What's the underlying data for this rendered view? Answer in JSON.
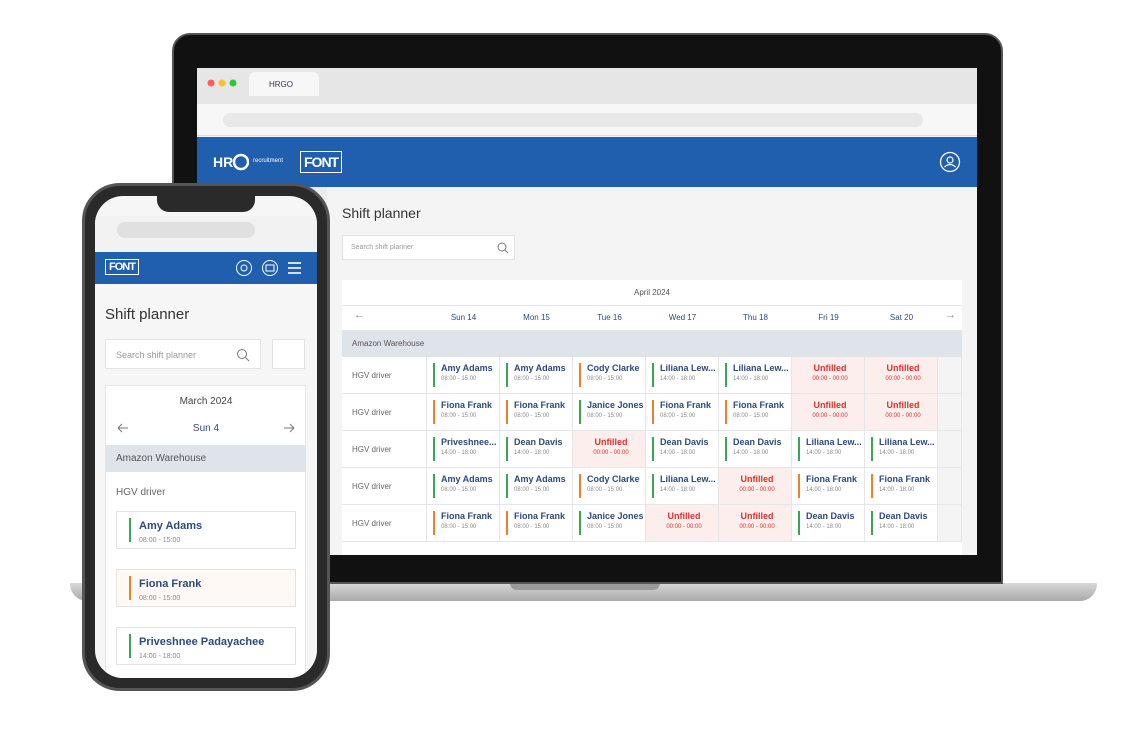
{
  "laptop": {
    "browser": {
      "tab_title": "HRGO"
    },
    "header": {
      "brand": "recruitment",
      "logo": "FONT"
    },
    "page_title": "Shift planner",
    "search_placeholder": "Search shift planner",
    "month": "April 2024",
    "days": [
      "Sun 14",
      "Mon 15",
      "Tue 16",
      "Wed 17",
      "Thu 18",
      "Fri 19",
      "Sat 20"
    ],
    "group": "Amazon Warehouse",
    "rows": [
      {
        "role": "HGV driver",
        "shifts": [
          {
            "name": "Amy Adams",
            "time": "08:00 - 15:00",
            "color": "#3aa655"
          },
          {
            "name": "Amy Adams",
            "time": "08:00 - 15:00",
            "color": "#3aa655"
          },
          {
            "name": "Cody Clarke",
            "time": "08:00 - 15:00",
            "color": "#f07f2c"
          },
          {
            "name": "Liliana Lew...",
            "time": "14:00 - 18:00",
            "color": "#3aa655"
          },
          {
            "name": "Liliana Lew...",
            "time": "14:00 - 18:00",
            "color": "#3aa655"
          },
          {
            "name": "Unfilled",
            "time": "00:00 - 00:00",
            "color": "#d9342b"
          },
          {
            "name": "Unfilled",
            "time": "00:00 - 00:00",
            "color": "#d9342b"
          }
        ]
      },
      {
        "role": "HGV driver",
        "shifts": [
          {
            "name": "Fiona Frank",
            "time": "08:00 - 15:00",
            "color": "#f07f2c"
          },
          {
            "name": "Fiona Frank",
            "time": "08:00 - 15:00",
            "color": "#f07f2c"
          },
          {
            "name": "Janice Jones",
            "time": "08:00 - 15:00",
            "color": "#3aa655"
          },
          {
            "name": "Fiona Frank",
            "time": "08:00 - 15:00",
            "color": "#f07f2c"
          },
          {
            "name": "Fiona Frank",
            "time": "08:00 - 15:00",
            "color": "#f07f2c"
          },
          {
            "name": "Unfilled",
            "time": "00:00 - 00:00",
            "color": "#d9342b"
          },
          {
            "name": "Unfilled",
            "time": "00:00 - 00:00",
            "color": "#d9342b"
          }
        ]
      },
      {
        "role": "HGV driver",
        "shifts": [
          {
            "name": "Priveshnee...",
            "time": "14:00 - 18:00",
            "color": "#3aa655"
          },
          {
            "name": "Dean Davis",
            "time": "14:00 - 18:00",
            "color": "#3aa655"
          },
          {
            "name": "Unfilled",
            "time": "00:00 - 00:00",
            "color": "#d9342b"
          },
          {
            "name": "Dean Davis",
            "time": "14:00 - 18:00",
            "color": "#3aa655"
          },
          {
            "name": "Dean Davis",
            "time": "14:00 - 18:00",
            "color": "#3aa655"
          },
          {
            "name": "Liliana Lew...",
            "time": "14:00 - 18:00",
            "color": "#3aa655"
          },
          {
            "name": "Liliana Lew...",
            "time": "14:00 - 18:00",
            "color": "#3aa655"
          }
        ]
      },
      {
        "role": "HGV driver",
        "shifts": [
          {
            "name": "Amy Adams",
            "time": "08:00 - 15:00",
            "color": "#3aa655"
          },
          {
            "name": "Amy Adams",
            "time": "08:00 - 15:00",
            "color": "#3aa655"
          },
          {
            "name": "Cody Clarke",
            "time": "08:00 - 15:00",
            "color": "#f07f2c"
          },
          {
            "name": "Liliana Lew...",
            "time": "14:00 - 18:00",
            "color": "#3aa655"
          },
          {
            "name": "Unfilled",
            "time": "00:00 - 00:00",
            "color": "#d9342b"
          },
          {
            "name": "Fiona Frank",
            "time": "14:00 - 18:00",
            "color": "#f07f2c"
          },
          {
            "name": "Fiona Frank",
            "time": "14:00 - 18:00",
            "color": "#f07f2c"
          }
        ]
      },
      {
        "role": "HGV driver",
        "shifts": [
          {
            "name": "Fiona Frank",
            "time": "08:00 - 15:00",
            "color": "#f07f2c"
          },
          {
            "name": "Fiona Frank",
            "time": "08:00 - 15:00",
            "color": "#f07f2c"
          },
          {
            "name": "Janice Jones",
            "time": "08:00 - 15:00",
            "color": "#3aa655"
          },
          {
            "name": "Unfilled",
            "time": "00:00 - 00:00",
            "color": "#d9342b"
          },
          {
            "name": "Unfilled",
            "time": "00:00 - 00:00",
            "color": "#d9342b"
          },
          {
            "name": "Dean Davis",
            "time": "14:00 - 18:00",
            "color": "#3aa655"
          },
          {
            "name": "Dean Davis",
            "time": "14:00 - 18:00",
            "color": "#3aa655"
          }
        ]
      }
    ]
  },
  "phone": {
    "logo": "FONT",
    "page_title": "Shift planner",
    "search_placeholder": "Search shift planner",
    "month": "March 2024",
    "day": "Sun 4",
    "group": "Amazon Warehouse",
    "role": "HGV driver",
    "shifts": [
      {
        "name": "Amy Adams",
        "time": "08:00 - 15:00",
        "color": "#3aa655"
      },
      {
        "name": "Fiona Frank",
        "time": "08:00 - 15:00",
        "color": "#f07f2c"
      },
      {
        "name": "Priveshnee Padayachee",
        "time": "14:00 - 18:00",
        "color": "#3aa655"
      }
    ]
  }
}
